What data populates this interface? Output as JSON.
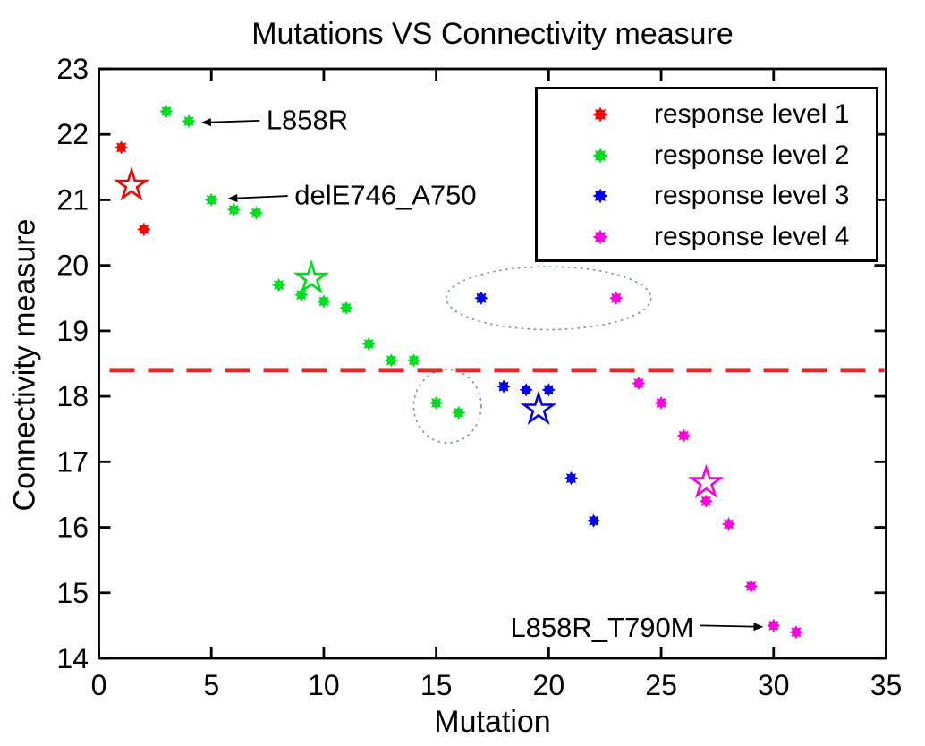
{
  "figure": {
    "title": "Mutations VS Connectivity measure",
    "xlabel": "Mutation",
    "ylabel": "Connectivity measure"
  },
  "legend": {
    "items": [
      {
        "label": "response level 1",
        "color": "#ff0000"
      },
      {
        "label": "response level 2",
        "color": "#00dd1e"
      },
      {
        "label": "response level 3",
        "color": "#0000ee"
      },
      {
        "label": "response level 4",
        "color": "#ff00dd"
      }
    ]
  },
  "chart_data": {
    "type": "scatter",
    "title": "Mutations VS Connectivity measure",
    "xlabel": "Mutation",
    "ylabel": "Connectivity measure",
    "xlim": [
      0,
      35
    ],
    "ylim": [
      14,
      23
    ],
    "xticks": [
      0,
      5,
      10,
      15,
      20,
      25,
      30,
      35
    ],
    "yticks": [
      14,
      15,
      16,
      17,
      18,
      19,
      20,
      21,
      22,
      23
    ],
    "grid": false,
    "legend_position": "upper right",
    "marker": "8-point-star",
    "series": [
      {
        "name": "response level 1",
        "color": "#ff0000",
        "points": [
          [
            1,
            21.8
          ],
          [
            2,
            20.55
          ]
        ],
        "star_marker": [
          1.45,
          21.22
        ]
      },
      {
        "name": "response level 2",
        "color": "#00dd1e",
        "points": [
          [
            3,
            22.35
          ],
          [
            4,
            22.2
          ],
          [
            5,
            21.0
          ],
          [
            6,
            20.85
          ],
          [
            7,
            20.8
          ],
          [
            8,
            19.7
          ],
          [
            9,
            19.55
          ],
          [
            10,
            19.45
          ],
          [
            11,
            19.35
          ],
          [
            12,
            18.8
          ],
          [
            13,
            18.55
          ],
          [
            14,
            18.55
          ],
          [
            15,
            17.9
          ],
          [
            16,
            17.75
          ]
        ],
        "star_marker": [
          9.45,
          19.8
        ]
      },
      {
        "name": "response level 3",
        "color": "#0000ee",
        "points": [
          [
            17,
            19.5
          ],
          [
            18,
            18.15
          ],
          [
            19,
            18.1
          ],
          [
            20,
            18.1
          ],
          [
            21,
            16.75
          ],
          [
            22,
            16.1
          ]
        ],
        "star_marker": [
          19.55,
          17.8
        ]
      },
      {
        "name": "response level 4",
        "color": "#ff00dd",
        "points": [
          [
            23,
            19.5
          ],
          [
            24,
            18.2
          ],
          [
            25,
            17.9
          ],
          [
            26,
            17.4
          ],
          [
            27,
            16.4
          ],
          [
            28,
            16.05
          ],
          [
            29,
            15.1
          ],
          [
            30,
            14.5
          ],
          [
            31,
            14.4
          ]
        ],
        "star_marker": [
          27,
          16.68
        ]
      }
    ],
    "reference_line": {
      "y": 18.4,
      "color": "#f02222",
      "style": "dashed"
    },
    "ellipse_color": "#7090aa",
    "ellipse_highlights": [
      {
        "cx": 20.0,
        "cy": 19.5,
        "rx": 4.55,
        "ry": 0.48
      },
      {
        "cx": 15.5,
        "cy": 17.85,
        "rx": 1.5,
        "ry": 0.56
      }
    ],
    "annotations": [
      {
        "text": "L858R",
        "text_at": [
          7.45,
          22.23
        ],
        "anchor": "start",
        "arrow_from": [
          7.15,
          22.21
        ],
        "arrow_to": [
          4.55,
          22.18
        ]
      },
      {
        "text": "delE746_A750",
        "text_at": [
          8.7,
          21.08
        ],
        "anchor": "start",
        "arrow_from": [
          8.4,
          21.06
        ],
        "arrow_to": [
          5.72,
          21.02
        ]
      },
      {
        "text": "L858R_T790M",
        "text_at": [
          26.45,
          14.48
        ],
        "anchor": "end",
        "arrow_from": [
          26.75,
          14.5
        ],
        "arrow_to": [
          29.55,
          14.48
        ]
      }
    ]
  }
}
